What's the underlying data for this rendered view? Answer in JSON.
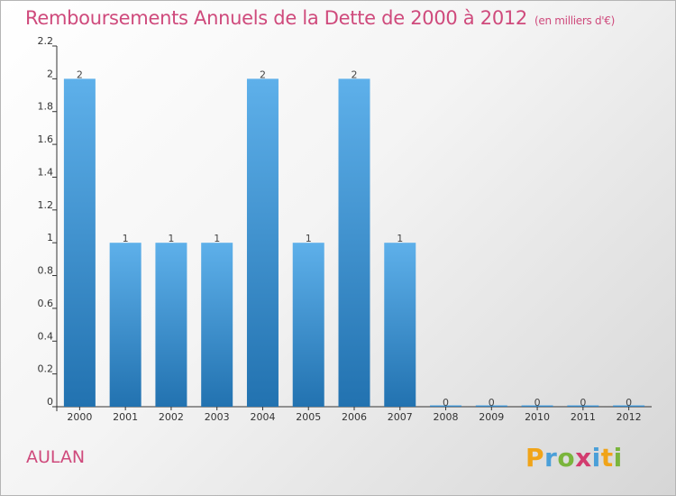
{
  "chart_data": {
    "type": "bar",
    "title": "Remboursements Annuels de la Dette de 2000 à 2012",
    "subtitle": "(en milliers d'€)",
    "categories": [
      "2000",
      "2001",
      "2002",
      "2003",
      "2004",
      "2005",
      "2006",
      "2007",
      "2008",
      "2009",
      "2010",
      "2011",
      "2012"
    ],
    "values": [
      2,
      1,
      1,
      1,
      2,
      1,
      2,
      1,
      0,
      0,
      0,
      0,
      0
    ],
    "data_labels": [
      "2",
      "1",
      "1",
      "1",
      "2",
      "1",
      "2",
      "1",
      "0",
      "0",
      "0",
      "0",
      "0"
    ],
    "ylim": [
      0,
      2.2
    ],
    "yticks": [
      0,
      0.2,
      0.4,
      0.6,
      0.8,
      1,
      1.2,
      1.4,
      1.6,
      1.8,
      2,
      2.2
    ],
    "ytick_labels": [
      "0",
      "0.2",
      "0.4",
      "0.6",
      "0.8",
      "1",
      "1.2",
      "1.4",
      "1.6",
      "1.8",
      "2",
      "2.2"
    ],
    "xlabel": "",
    "ylabel": "",
    "grid": false,
    "bar_color_top": "#5eb0ea",
    "bar_color_bottom": "#2272b0"
  },
  "place_name": "AULAN",
  "logo": {
    "letters": [
      "P",
      "r",
      "o",
      "x",
      "i",
      "t",
      "i"
    ],
    "colors": [
      "#f0a419",
      "#4a9fd8",
      "#7ab53c",
      "#d23c6f",
      "#4a9fd8",
      "#f0a419",
      "#7ab53c"
    ]
  },
  "colors": {
    "title": "#cf4a7c",
    "axis": "#333333"
  }
}
